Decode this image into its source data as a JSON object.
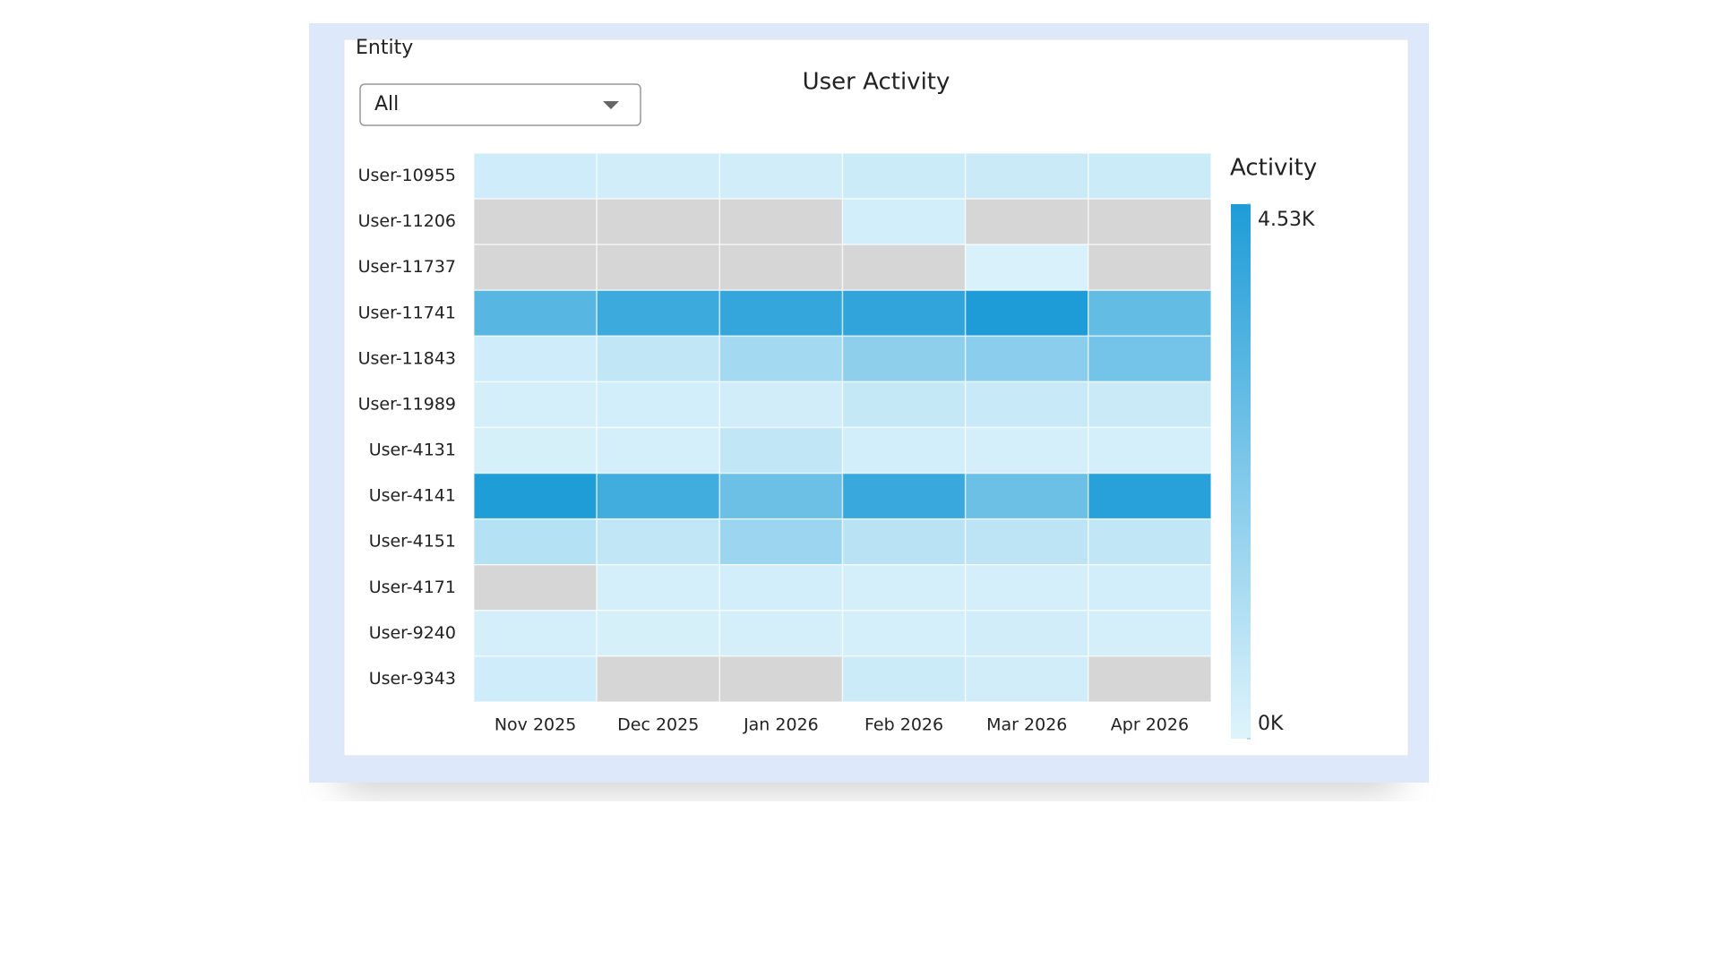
{
  "filter": {
    "label": "Entity",
    "value": "All"
  },
  "chart_data": {
    "type": "heatmap",
    "title": "User Activity",
    "x": [
      "Nov 2025",
      "Dec 2025",
      "Jan 2026",
      "Feb 2026",
      "Mar 2026",
      "Apr 2026"
    ],
    "y": [
      "User-10955",
      "User-11206",
      "User-11737",
      "User-11741",
      "User-11843",
      "User-11989",
      "User-4131",
      "User-4141",
      "User-4151",
      "User-4171",
      "User-9240",
      "User-9343"
    ],
    "values": [
      [
        400,
        350,
        350,
        450,
        500,
        450
      ],
      [
        null,
        null,
        null,
        300,
        null,
        null
      ],
      [
        null,
        null,
        null,
        null,
        150,
        null
      ],
      [
        3200,
        3800,
        4000,
        4100,
        4530,
        2900
      ],
      [
        400,
        700,
        1400,
        1900,
        2000,
        2500
      ],
      [
        250,
        300,
        350,
        600,
        550,
        500
      ],
      [
        200,
        250,
        700,
        300,
        250,
        250
      ],
      [
        4500,
        3700,
        2700,
        3900,
        2700,
        4300
      ],
      [
        1000,
        700,
        1600,
        900,
        800,
        700
      ],
      [
        null,
        250,
        300,
        250,
        250,
        300
      ],
      [
        250,
        200,
        250,
        250,
        350,
        250
      ],
      [
        400,
        null,
        null,
        450,
        350,
        null
      ]
    ],
    "legend_title": "Activity",
    "zlim": [
      0,
      4530
    ],
    "zticks": [
      {
        "value": 4530,
        "label": "4.53K"
      },
      {
        "value": 0,
        "label": "0K"
      }
    ],
    "colorscale": [
      "#dff4fc",
      "#1e9cd7"
    ],
    "null_color": "#d6d6d6"
  }
}
